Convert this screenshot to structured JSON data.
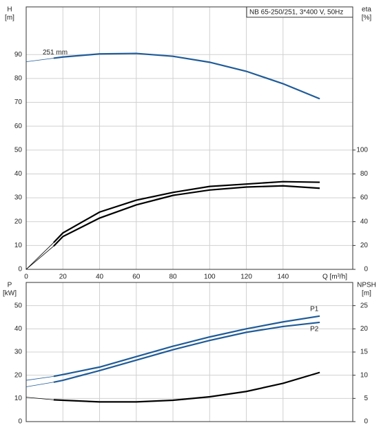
{
  "chart_data": [
    {
      "type": "line",
      "title": "NB 65-250/251, 3*400 V, 50Hz",
      "ylabel": "H",
      "yunit": "[m]",
      "y2label": "eta",
      "y2unit": "[%]",
      "xlabel": "Q [m³/h]",
      "x": [
        0,
        15,
        20,
        40,
        60,
        80,
        100,
        120,
        140,
        160
      ],
      "xlim": [
        0,
        178
      ],
      "xticks": [
        0,
        20,
        40,
        60,
        80,
        100,
        120,
        140
      ],
      "ylim": [
        0,
        110
      ],
      "yticks": [
        0,
        10,
        20,
        30,
        40,
        50,
        60,
        70,
        80,
        90
      ],
      "y2lim": [
        0,
        220
      ],
      "y2ticks": [
        0,
        20,
        40,
        60,
        80,
        100
      ],
      "grid": true,
      "series": [
        {
          "name": "251 mm",
          "color": "#1f5b98",
          "values": [
            87,
            88.5,
            89,
            90.3,
            90.5,
            89.3,
            86.8,
            83,
            77.8,
            71.5
          ]
        },
        {
          "color": "#000000",
          "axis": "y2",
          "values": [
            0,
            22.5,
            30.5,
            48,
            58,
            64.5,
            69.5,
            71.5,
            73.5,
            73
          ]
        },
        {
          "color": "#000000",
          "axis": "y2",
          "values": [
            0,
            19.5,
            27.5,
            43,
            54,
            62,
            66.5,
            69,
            70,
            68
          ]
        }
      ]
    },
    {
      "type": "line",
      "ylabel": "P",
      "yunit": "[kW]",
      "y2label": "NPSH",
      "y2unit": "[m]",
      "x": [
        0,
        15,
        20,
        40,
        60,
        80,
        100,
        120,
        140,
        160
      ],
      "xlim": [
        0,
        178
      ],
      "xticks": [
        0,
        20,
        40,
        60,
        80,
        100,
        120,
        140
      ],
      "ylim": [
        0,
        60
      ],
      "yticks": [
        0,
        10,
        20,
        30,
        40,
        50
      ],
      "y2lim": [
        0,
        30
      ],
      "y2ticks": [
        0,
        5,
        10,
        15,
        20,
        25
      ],
      "grid": true,
      "series": [
        {
          "name": "P1",
          "color": "#1f5b98",
          "values": [
            17.8,
            19.5,
            20.3,
            23.5,
            28,
            32.5,
            36.5,
            40,
            43,
            45.5
          ]
        },
        {
          "name": "P2",
          "color": "#1f5b98",
          "values": [
            15,
            17,
            17.8,
            22,
            26.5,
            31,
            35,
            38.5,
            41,
            42.8
          ]
        },
        {
          "color": "#000000",
          "axis": "y2",
          "values": [
            5.25,
            4.7,
            4.6,
            4.25,
            4.25,
            4.6,
            5.35,
            6.5,
            8.25,
            10.6
          ]
        }
      ]
    }
  ]
}
